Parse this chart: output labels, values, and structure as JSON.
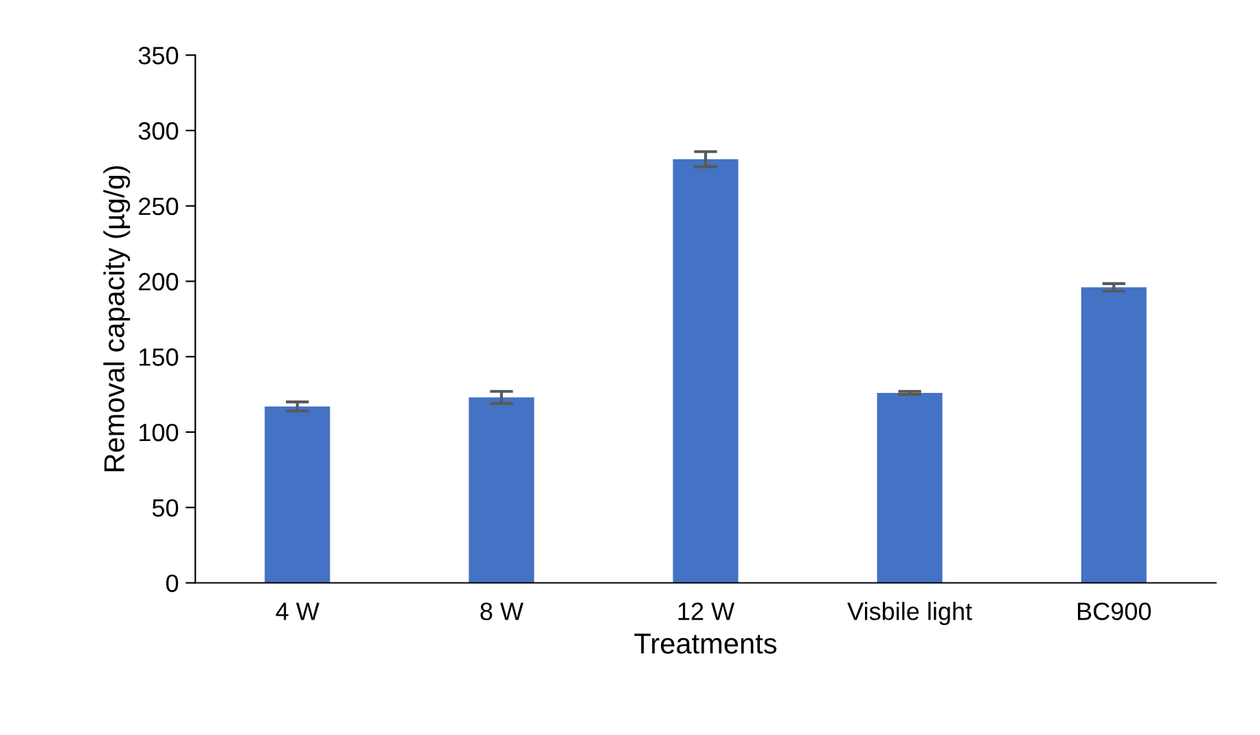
{
  "chart_data": {
    "type": "bar",
    "xlabel": "Treatments",
    "ylabel": "Removal capacity (µg/g)",
    "categories": [
      "4 W",
      "8 W",
      "12 W",
      "Visbile light",
      "BC900"
    ],
    "values": [
      117,
      123,
      281,
      126,
      196
    ],
    "errors": [
      3,
      4,
      5,
      1,
      2.5
    ],
    "color": "#4472c4",
    "ylim": [
      0,
      350
    ],
    "yticks": [
      0,
      50,
      100,
      150,
      200,
      250,
      300,
      350
    ],
    "grid": false,
    "legend": false
  }
}
